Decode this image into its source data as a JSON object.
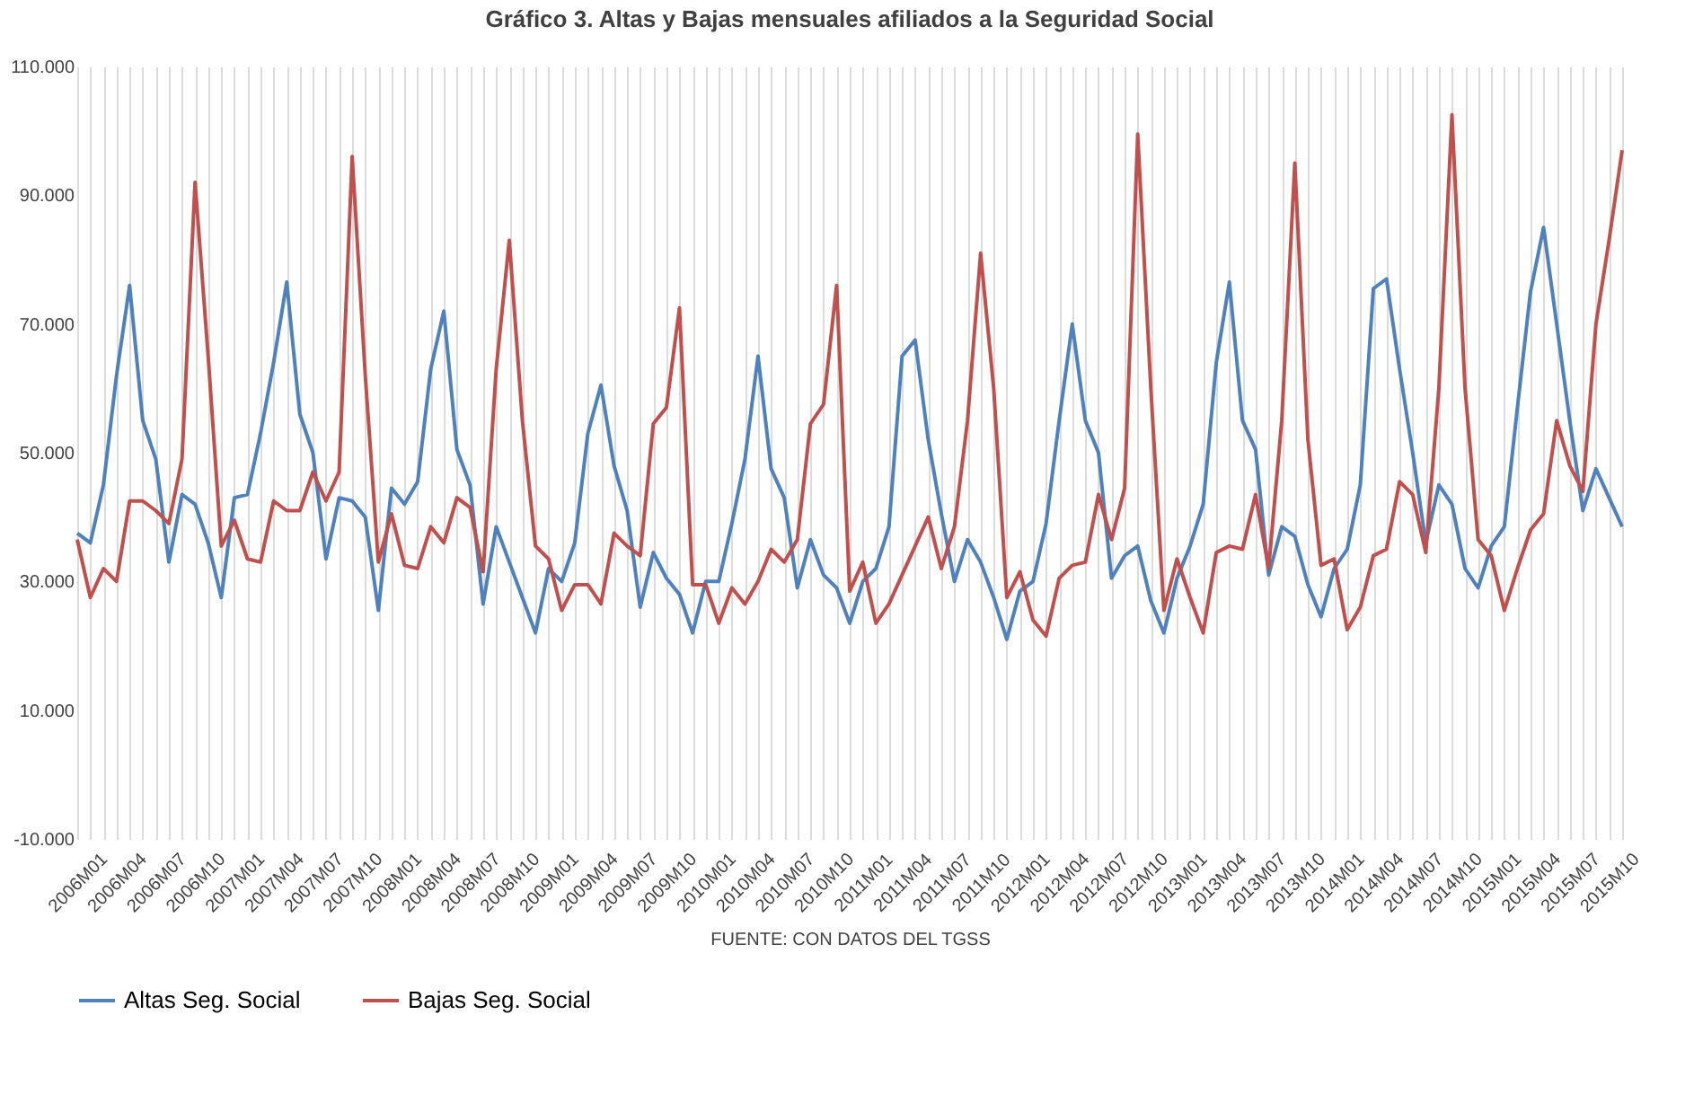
{
  "chart_data": {
    "type": "line",
    "title": "Gráfico 3. Altas y Bajas mensuales afiliados a la Seguridad Social",
    "annotations": [
      "FUENTE: CON DATOS DEL TGSS"
    ],
    "categories": [
      "2006M01",
      null,
      null,
      "2006M04",
      null,
      null,
      "2006M07",
      null,
      null,
      "2006M10",
      null,
      null,
      "2007M01",
      null,
      null,
      "2007M04",
      null,
      null,
      "2007M07",
      null,
      null,
      "2007M10",
      null,
      null,
      "2008M01",
      null,
      null,
      "2008M04",
      null,
      null,
      "2008M07",
      null,
      null,
      "2008M10",
      null,
      null,
      "2009M01",
      null,
      null,
      "2009M04",
      null,
      null,
      "2009M07",
      null,
      null,
      "2009M10",
      null,
      null,
      "2010M01",
      null,
      null,
      "2010M04",
      null,
      null,
      "2010M07",
      null,
      null,
      "2010M10",
      null,
      null,
      "2011M01",
      null,
      null,
      "2011M04",
      null,
      null,
      "2011M07",
      null,
      null,
      "2011M10",
      null,
      null,
      "2012M01",
      null,
      null,
      "2012M04",
      null,
      null,
      "2012M07",
      null,
      null,
      "2012M10",
      null,
      null,
      "2013M01",
      null,
      null,
      "2013M04",
      null,
      null,
      "2013M07",
      null,
      null,
      "2013M10",
      null,
      null,
      "2014M01",
      null,
      null,
      "2014M04",
      null,
      null,
      "2014M07",
      null,
      null,
      "2014M10",
      null,
      null,
      "2015M01",
      null,
      null,
      "2015M04",
      null,
      null,
      "2015M07",
      null,
      null,
      "2015M10",
      null
    ],
    "series": [
      {
        "name": "Altas Seg. Social",
        "color": "#4f81bd",
        "values": [
          37500,
          36000,
          45000,
          62000,
          76000,
          55000,
          49000,
          33000,
          43500,
          42000,
          36000,
          27500,
          43000,
          43500,
          53000,
          64000,
          76500,
          56000,
          50000,
          33500,
          43000,
          42500,
          40000,
          25500,
          44500,
          42000,
          45500,
          63000,
          72000,
          50500,
          45000,
          26500,
          38500,
          33000,
          27500,
          22000,
          32000,
          30000,
          36000,
          53000,
          60500,
          48000,
          41000,
          26000,
          34500,
          30500,
          28000,
          22000,
          30000,
          30000,
          39000,
          49000,
          65000,
          47500,
          43000,
          29000,
          36500,
          31000,
          29000,
          23500,
          30000,
          32000,
          38500,
          65000,
          67500,
          52000,
          40500,
          30000,
          36500,
          33000,
          27500,
          21000,
          28500,
          30000,
          39000,
          55000,
          70000,
          55000,
          50000,
          30500,
          34000,
          35500,
          27000,
          22000,
          30500,
          35500,
          42000,
          64000,
          76500,
          55000,
          50500,
          31000,
          38500,
          37000,
          29500,
          24500,
          32000,
          35000,
          45000,
          75500,
          77000,
          63000,
          50000,
          36000,
          45000,
          42000,
          32000,
          29000,
          35500,
          38500,
          57000,
          75000,
          85000,
          70000,
          55000,
          41000,
          47500,
          43000,
          38500
        ]
      },
      {
        "name": "Bajas Seg. Social",
        "color": "#c0504d",
        "values": [
          36500,
          27500,
          32000,
          30000,
          42500,
          42500,
          41000,
          39000,
          49000,
          92000,
          65000,
          35500,
          39500,
          33500,
          33000,
          42500,
          41000,
          41000,
          47000,
          42500,
          47000,
          96000,
          62000,
          33000,
          40500,
          32500,
          32000,
          38500,
          36000,
          43000,
          41500,
          31500,
          63000,
          83000,
          55000,
          35500,
          33500,
          25500,
          29500,
          29500,
          26500,
          37500,
          35500,
          34000,
          54500,
          57000,
          72500,
          29500,
          29500,
          23500,
          29000,
          26500,
          30000,
          35000,
          33000,
          36500,
          54500,
          57500,
          76000,
          28500,
          33000,
          23500,
          26500,
          31000,
          35500,
          40000,
          32000,
          38500,
          55000,
          81000,
          60000,
          27500,
          31500,
          24000,
          21500,
          30500,
          32500,
          33000,
          43500,
          36500,
          44500,
          99500,
          60000,
          25500,
          33500,
          27500,
          22000,
          34500,
          35500,
          35000,
          43500,
          32000,
          55000,
          95000,
          52000,
          32500,
          33500,
          22500,
          26000,
          34000,
          35000,
          45500,
          43500,
          34500,
          60000,
          102500,
          60000,
          36500,
          34000,
          25500,
          32000,
          38000,
          40500,
          55000,
          48000,
          44000,
          70000,
          83000,
          97000
        ]
      }
    ],
    "ylim": [
      -10000,
      110000
    ],
    "yticks": [
      {
        "value": -10000,
        "label": "-10.000"
      },
      {
        "value": 10000,
        "label": "10.000"
      },
      {
        "value": 30000,
        "label": "30.000"
      },
      {
        "value": 50000,
        "label": "50.000"
      },
      {
        "value": 70000,
        "label": "70.000"
      },
      {
        "value": 90000,
        "label": "90.000"
      },
      {
        "value": 110000,
        "label": "110.000"
      }
    ],
    "grid": "x",
    "legend": "bottom",
    "marker": "none",
    "line_style": "solid"
  }
}
